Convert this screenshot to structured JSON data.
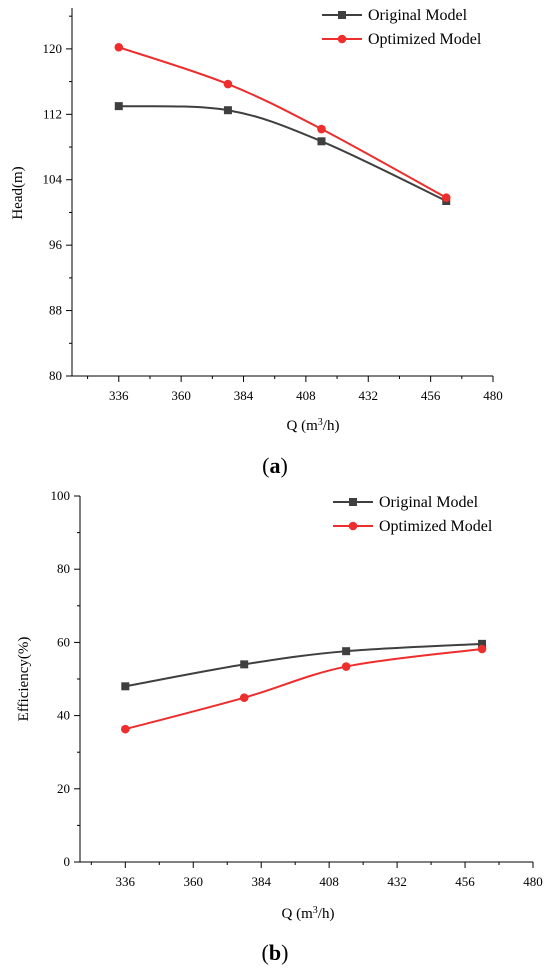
{
  "chart_data": [
    {
      "type": "line",
      "panel": "a",
      "x": [
        336,
        378,
        414,
        462
      ],
      "series": [
        {
          "name": "Original Model",
          "values": [
            113.0,
            112.5,
            108.7,
            101.4
          ],
          "color": "#3f3f3f",
          "marker": "square"
        },
        {
          "name": "Optimized Model",
          "values": [
            120.2,
            115.7,
            110.2,
            101.8
          ],
          "color": "#ee2d2d",
          "marker": "circle"
        }
      ],
      "xlabel": "Q (m³/h)",
      "ylabel": "Head(m)",
      "xlim": [
        318,
        480
      ],
      "ylim": [
        80,
        125
      ],
      "xticks": [
        336,
        360,
        384,
        408,
        432,
        456,
        480
      ],
      "yticks": [
        80,
        88,
        96,
        104,
        112,
        120
      ],
      "legend": "top-right",
      "grid": false
    },
    {
      "type": "line",
      "panel": "b",
      "x": [
        336,
        378,
        414,
        462
      ],
      "series": [
        {
          "name": "Original Model",
          "values": [
            48.0,
            54.0,
            57.6,
            59.6
          ],
          "color": "#3f3f3f",
          "marker": "square"
        },
        {
          "name": "Optimized Model",
          "values": [
            36.3,
            44.9,
            53.4,
            58.2
          ],
          "color": "#ee2d2d",
          "marker": "circle"
        }
      ],
      "xlabel": "Q (m³/h)",
      "ylabel": "Efficiency(%)",
      "xlim": [
        320,
        480
      ],
      "ylim": [
        0,
        100
      ],
      "xticks": [
        336,
        360,
        384,
        408,
        432,
        456,
        480
      ],
      "yticks": [
        0,
        20,
        40,
        60,
        80,
        100
      ],
      "legend": "top-right",
      "grid": false
    }
  ],
  "panel_labels": {
    "a": "(a)",
    "b": "(b)"
  }
}
